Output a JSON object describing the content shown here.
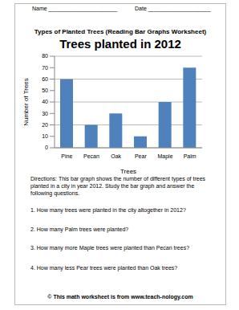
{
  "header": {
    "name": "Name ______________________",
    "date": "Date ____________________",
    "title": "Types of Planted Trees (Reading Bar Graphs Worksheet)"
  },
  "chart_data": {
    "type": "bar",
    "title": "Trees planted in 2012",
    "x_label": "Trees",
    "y_label": "Number of Trees",
    "categories": [
      "Pine",
      "Pecan",
      "Oak",
      "Pear",
      "Maple",
      "Palm"
    ],
    "values": [
      60,
      20,
      30,
      10,
      40,
      70
    ],
    "color": "#4f81bd",
    "ylim": [
      0,
      80
    ],
    "yticks": [
      0,
      10,
      20,
      30,
      40,
      50,
      60,
      70,
      80
    ],
    "grid": true
  },
  "directions": "Directions: This bar graph shows the number of different types of trees planted in a city in year 2012. Study the bar graph and answer the following questions.",
  "questions": [
    "1. How many trees were planted in the city altogether in 2012?",
    "2. How many Palm trees were planted?",
    "3. How many more Maple trees were planted than Pecan trees?",
    "4. How many less Pear trees were planted than Oak trees?"
  ],
  "footer": "© This math worksheet is from www.teach-nology.com"
}
